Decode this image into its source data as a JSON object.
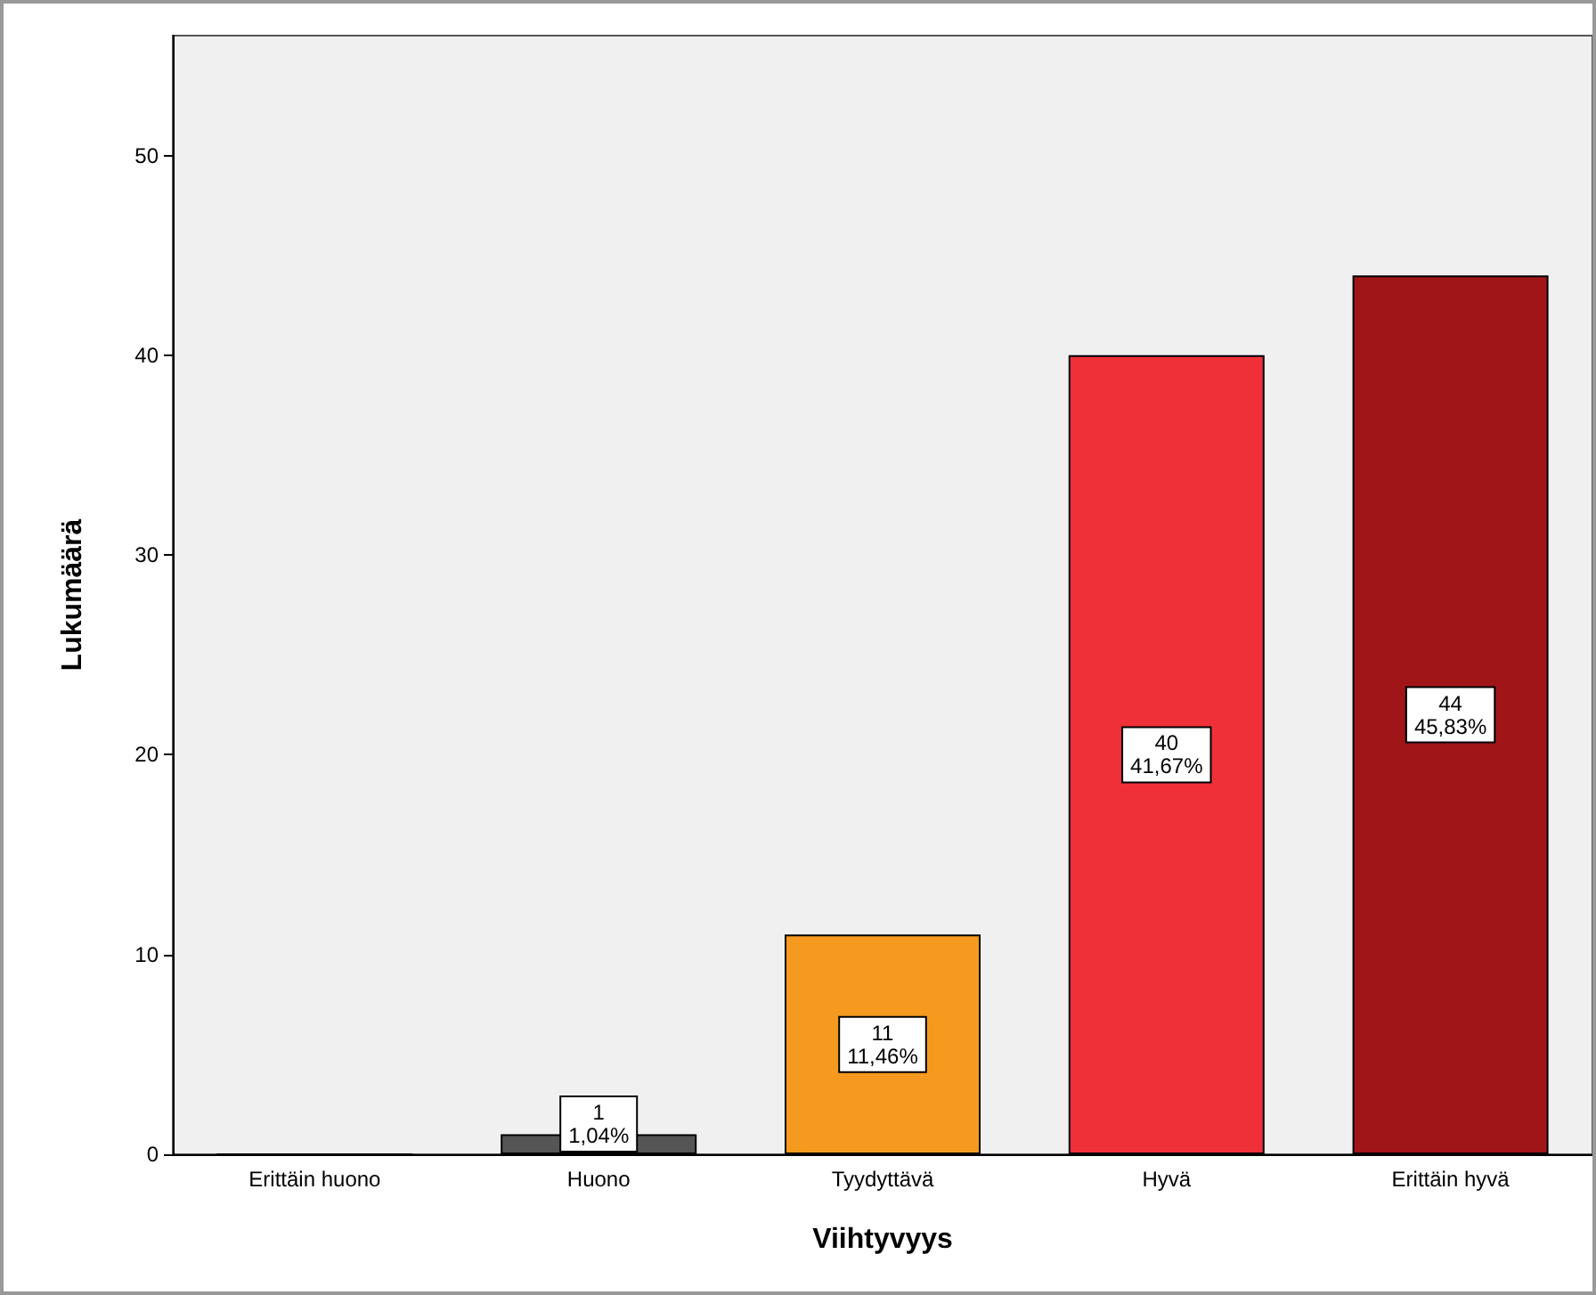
{
  "chart_data": {
    "type": "bar",
    "xlabel": "Viihtyvyys",
    "ylabel": "Lukumäärä",
    "categories": [
      "Erittäin huono",
      "Huono",
      "Tyydyttävä",
      "Hyvä",
      "Erittäin hyvä"
    ],
    "values": [
      0,
      1,
      11,
      40,
      44
    ],
    "colors": [
      "#555555",
      "#555555",
      "#f59a1e",
      "#ef3038",
      "#a01518"
    ],
    "value_labels": [
      null,
      "1\n1,04%",
      "11\n11,46%",
      "40\n41,67%",
      "44\n45,83%"
    ],
    "ylim": [
      0,
      56
    ],
    "yticks": [
      0,
      10,
      20,
      30,
      40,
      50
    ]
  }
}
